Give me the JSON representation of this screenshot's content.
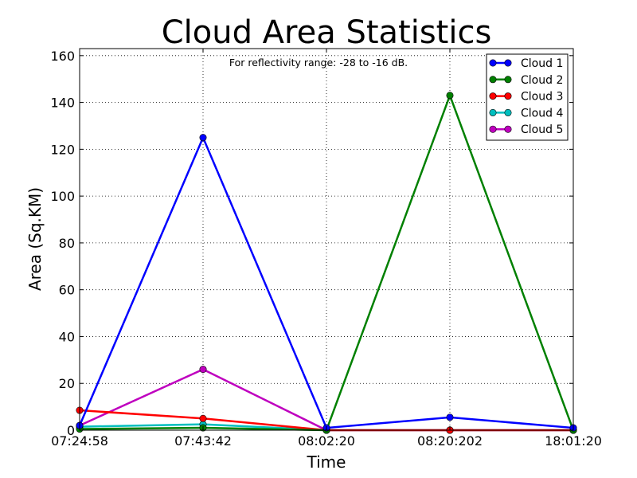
{
  "chart_data": {
    "type": "line",
    "title": "Cloud Area Statistics",
    "subtitle": "For reflectivity range: -28 to -16 dB.",
    "xlabel": "Time",
    "ylabel": "Area (Sq.KM)",
    "categories": [
      "07:24:58",
      "07:43:42",
      "08:02:20",
      "08:20:202",
      "18:01:20"
    ],
    "ylim": [
      0,
      163
    ],
    "yticks": [
      0,
      20,
      40,
      60,
      80,
      100,
      120,
      140,
      160
    ],
    "grid": true,
    "legend_position": "top-right",
    "series": [
      {
        "name": "Cloud 1",
        "color": "#0000ff",
        "values": [
          2,
          125,
          1,
          5.5,
          1
        ]
      },
      {
        "name": "Cloud 2",
        "color": "#008000",
        "values": [
          0.5,
          1,
          0,
          143,
          0
        ]
      },
      {
        "name": "Cloud 3",
        "color": "#ff0000",
        "values": [
          8.5,
          5,
          0,
          0,
          0
        ]
      },
      {
        "name": "Cloud 4",
        "color": "#00bfbf",
        "values": [
          1.5,
          2.5,
          0,
          0,
          0
        ]
      },
      {
        "name": "Cloud 5",
        "color": "#bf00bf",
        "values": [
          2,
          26,
          0,
          0,
          0
        ]
      }
    ]
  }
}
